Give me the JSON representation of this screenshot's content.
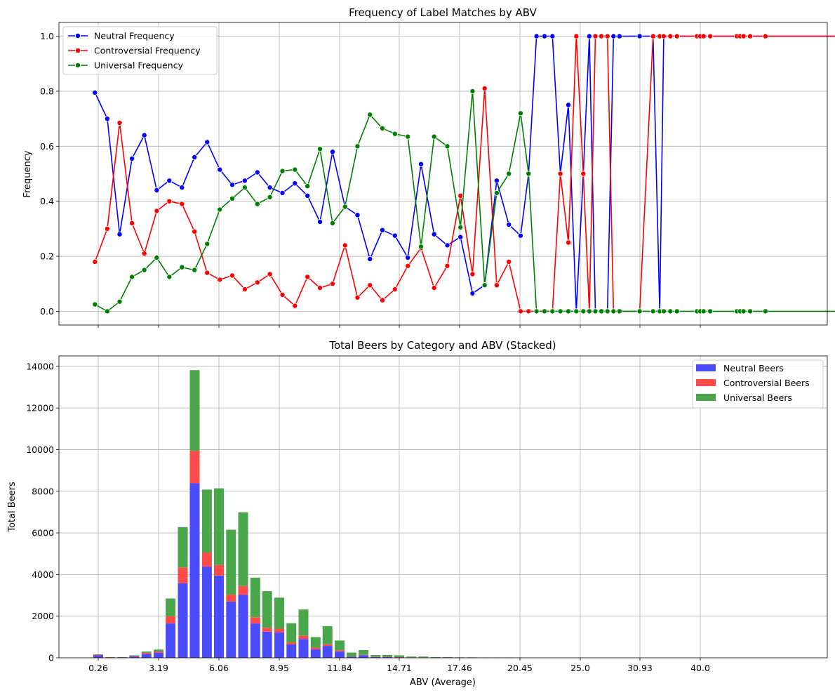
{
  "colors": {
    "neutral": "#0000ff",
    "controversial": "#ff0000",
    "universal": "#008000",
    "neutral_bar": "#4a4aff",
    "controversial_bar": "#ff4a4a",
    "universal_bar": "#4aa64a"
  },
  "chart_data": [
    {
      "type": "line",
      "title": "Frequency of Label Matches by ABV",
      "xlabel": "",
      "ylabel": "Frequency",
      "ylim": [
        -0.05,
        1.05
      ],
      "yticks": [
        0.0,
        0.2,
        0.4,
        0.6,
        0.8,
        1.0
      ],
      "ytick_labels": [
        "0.0",
        "0.2",
        "0.4",
        "0.6",
        "0.8",
        "1.0"
      ],
      "grid": true,
      "legend_position": "top-left",
      "x": [
        0.1,
        0.7,
        1.3,
        1.9,
        2.5,
        3.1,
        3.7,
        4.3,
        4.9,
        5.5,
        6.1,
        6.7,
        7.3,
        7.9,
        8.5,
        9.1,
        9.7,
        10.3,
        10.9,
        11.5,
        12.1,
        12.7,
        13.3,
        13.9,
        14.5,
        15.1,
        15.7,
        16.3,
        16.9,
        17.5,
        18.1,
        18.7,
        19.3,
        19.9,
        20.5,
        21.1,
        21.7,
        22.3,
        22.9,
        23.5,
        24.1,
        24.7,
        25.3,
        25.9,
        26.5,
        27.1,
        27.7,
        28.3,
        28.9,
        30.9,
        32.9,
        33.9,
        34.5,
        35.5,
        36.5,
        39.5,
        40.0,
        40.5,
        41.5,
        45.5,
        46.0,
        46.5,
        47.5,
        49.8,
        64.1
      ],
      "series": [
        {
          "name": "Neutral Frequency",
          "color": "#0000ff",
          "values": [
            0.795,
            0.7,
            0.28,
            0.555,
            0.64,
            0.44,
            0.475,
            0.45,
            0.56,
            0.615,
            0.515,
            0.46,
            0.475,
            0.505,
            0.45,
            0.43,
            0.465,
            0.42,
            0.325,
            0.58,
            0.38,
            0.35,
            0.19,
            0.295,
            0.275,
            0.195,
            0.535,
            0.28,
            0.24,
            0.27,
            0.065,
            0.095,
            0.475,
            0.315,
            0.275,
            0.5,
            1.0,
            1.0,
            1.0,
            0.5,
            0.75,
            0.0,
            0.5,
            1.0,
            0.0,
            0.0,
            0.0,
            1.0,
            1.0,
            1.0,
            1.0,
            0.0,
            1.0,
            1.0,
            1.0,
            1.0,
            1.0,
            1.0,
            1.0,
            1.0,
            1.0,
            1.0,
            1.0,
            1.0,
            1.0
          ]
        },
        {
          "name": "Controversial Frequency",
          "color": "#ff0000",
          "values": [
            0.18,
            0.3,
            0.685,
            0.32,
            0.21,
            0.365,
            0.4,
            0.39,
            0.29,
            0.14,
            0.115,
            0.13,
            0.08,
            0.105,
            0.135,
            0.06,
            0.02,
            0.125,
            0.085,
            0.1,
            0.24,
            0.05,
            0.095,
            0.04,
            0.08,
            0.165,
            0.23,
            0.085,
            0.165,
            0.42,
            0.135,
            0.81,
            0.095,
            0.18,
            0.0,
            0.0,
            0.0,
            0.0,
            0.0,
            0.5,
            0.25,
            1.0,
            0.5,
            0.0,
            1.0,
            1.0,
            1.0,
            0.0,
            0.0,
            0.0,
            1.0,
            1.0,
            1.0,
            1.0,
            1.0,
            1.0,
            1.0,
            1.0,
            1.0,
            1.0,
            1.0,
            1.0,
            1.0,
            1.0,
            1.0
          ]
        },
        {
          "name": "Universal Frequency",
          "color": "#008000",
          "values": [
            0.025,
            0.0,
            0.035,
            0.125,
            0.15,
            0.195,
            0.125,
            0.16,
            0.15,
            0.245,
            0.37,
            0.41,
            0.45,
            0.39,
            0.415,
            0.51,
            0.515,
            0.455,
            0.59,
            0.32,
            0.38,
            0.6,
            0.715,
            0.665,
            0.645,
            0.635,
            0.235,
            0.635,
            0.6,
            0.305,
            0.8,
            0.095,
            0.43,
            0.5,
            0.72,
            0.5,
            0.0,
            0.0,
            0.0,
            0.0,
            0.0,
            0.0,
            0.0,
            0.0,
            0.0,
            0.0,
            0.0,
            0.0,
            0.0,
            0.0,
            0.0,
            0.0,
            0.0,
            0.0,
            0.0,
            0.0,
            0.0,
            0.0,
            0.0,
            0.0,
            0.0,
            0.0,
            0.0,
            0.0,
            0.0
          ]
        }
      ]
    },
    {
      "type": "bar",
      "stacked": true,
      "title": "Total Beers by Category and ABV (Stacked)",
      "xlabel": "ABV (Average)",
      "ylabel": "Total Beers",
      "ylim": [
        0,
        14500
      ],
      "yticks": [
        0,
        2000,
        4000,
        6000,
        8000,
        10000,
        12000,
        14000
      ],
      "ytick_labels": [
        "0",
        "2000",
        "4000",
        "6000",
        "8000",
        "10000",
        "12000",
        "14000"
      ],
      "xticks": [
        0.26,
        3.19,
        6.06,
        8.95,
        11.84,
        14.71,
        17.46,
        20.45,
        25.0,
        30.93,
        40.0
      ],
      "xtick_labels": [
        "0.26",
        "3.19",
        "6.06",
        "8.95",
        "11.84",
        "14.71",
        "17.46",
        "20.45",
        "25.0",
        "30.93",
        "40.0"
      ],
      "grid": true,
      "legend_position": "top-right",
      "categories": [
        0.26,
        0.84,
        1.43,
        2.01,
        2.6,
        3.19,
        3.76,
        4.34,
        4.91,
        5.49,
        6.06,
        6.64,
        7.22,
        7.8,
        8.37,
        8.95,
        9.53,
        10.11,
        10.69,
        11.26,
        11.84,
        12.41,
        12.99,
        13.57,
        14.14,
        14.71,
        15.26,
        15.81,
        16.36,
        16.91,
        17.46,
        18.06,
        18.66,
        19.26,
        19.86
      ],
      "series": [
        {
          "name": "Neutral Beers",
          "color": "#4a4aff",
          "values": [
            120,
            25,
            20,
            70,
            180,
            250,
            1650,
            3580,
            8380,
            4380,
            3950,
            2700,
            3030,
            1650,
            1250,
            1220,
            640,
            900,
            400,
            570,
            300,
            60,
            120,
            40,
            40,
            30,
            15,
            15,
            8,
            8,
            5,
            5,
            3,
            3,
            2
          ]
        },
        {
          "name": "Controversial Beers",
          "color": "#ff4a4a",
          "values": [
            40,
            5,
            10,
            25,
            55,
            55,
            350,
            760,
            1560,
            680,
            510,
            330,
            420,
            300,
            190,
            180,
            100,
            170,
            85,
            80,
            60,
            10,
            20,
            15,
            10,
            8,
            5,
            5,
            3,
            3,
            2,
            2,
            1,
            1,
            1
          ]
        },
        {
          "name": "Universal Beers",
          "color": "#4aa64a",
          "values": [
            10,
            0,
            5,
            25,
            65,
            90,
            850,
            1940,
            3880,
            3020,
            3680,
            3120,
            3540,
            1900,
            1760,
            1490,
            920,
            1250,
            510,
            870,
            470,
            180,
            230,
            80,
            90,
            80,
            40,
            40,
            25,
            25,
            18,
            15,
            10,
            8,
            6
          ]
        }
      ]
    }
  ]
}
